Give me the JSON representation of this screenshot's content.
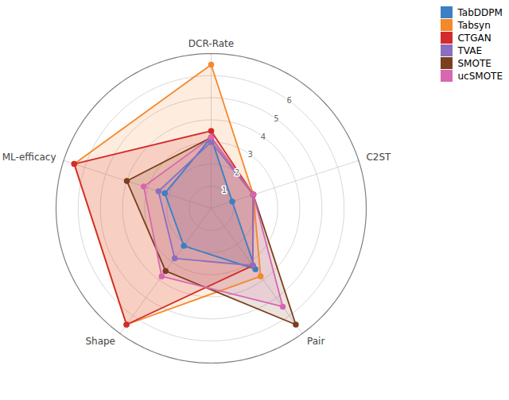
{
  "chart_data": {
    "type": "radar",
    "categories": [
      "DCR-Rate",
      "C2ST",
      "Pair",
      "Shape",
      "ML-efficacy"
    ],
    "series": [
      {
        "name": "TabDDPM",
        "color": "#3B7FC4",
        "values": [
          3.2,
          1.0,
          3.4,
          2.1,
          2.2
        ]
      },
      {
        "name": "Tabsyn",
        "color": "#F5882A",
        "values": [
          6.5,
          2.0,
          3.8,
          6.5,
          6.5
        ]
      },
      {
        "name": "CTGAN",
        "color": "#D42B2B",
        "values": [
          3.5,
          2.0,
          3.2,
          6.5,
          6.5
        ]
      },
      {
        "name": "TVAE",
        "color": "#8A6FBF",
        "values": [
          3.0,
          2.0,
          3.2,
          2.8,
          2.5
        ]
      },
      {
        "name": "SMOTE",
        "color": "#7B3F1E",
        "values": [
          3.2,
          2.0,
          6.5,
          3.5,
          4.0
        ]
      },
      {
        "name": "ucSMOTE",
        "color": "#D966B0",
        "values": [
          3.2,
          2.0,
          5.5,
          3.8,
          3.2
        ]
      }
    ],
    "ylim": [
      0,
      7.0
    ],
    "yticks": [
      1,
      2,
      3,
      4,
      5,
      6
    ],
    "grid": true,
    "legend": "upper right",
    "marker": "circle"
  }
}
